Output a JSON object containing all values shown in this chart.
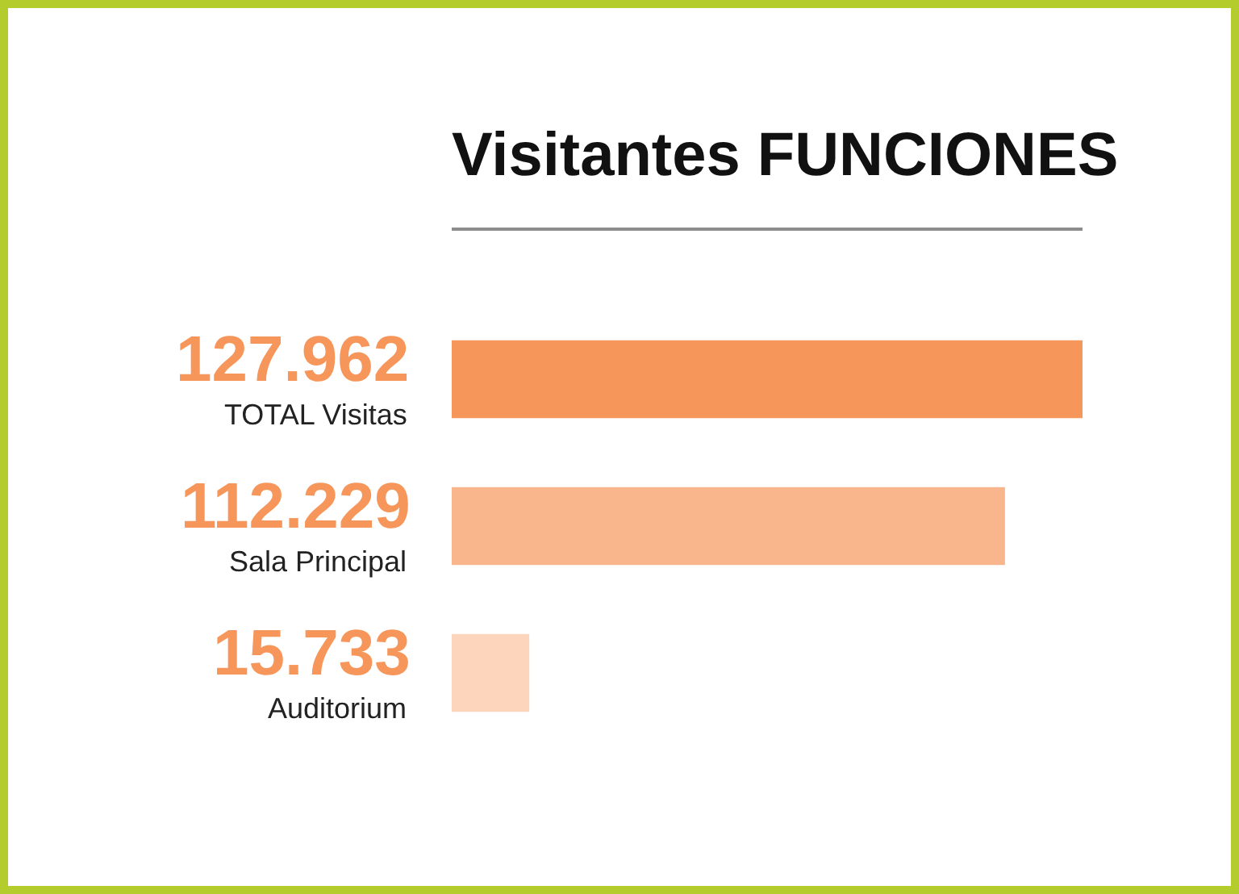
{
  "chart_data": {
    "type": "bar",
    "orientation": "horizontal",
    "title": "Visitantes FUNCIONES",
    "categories": [
      "TOTAL Visitas",
      "Sala Principal",
      "Auditorium"
    ],
    "values": [
      127962,
      112229,
      15733
    ],
    "colors": [
      "#f7965b",
      "#f9b68d",
      "#fcd5bc"
    ],
    "value_labels": [
      "127.962",
      "112.229",
      "15.733"
    ]
  }
}
